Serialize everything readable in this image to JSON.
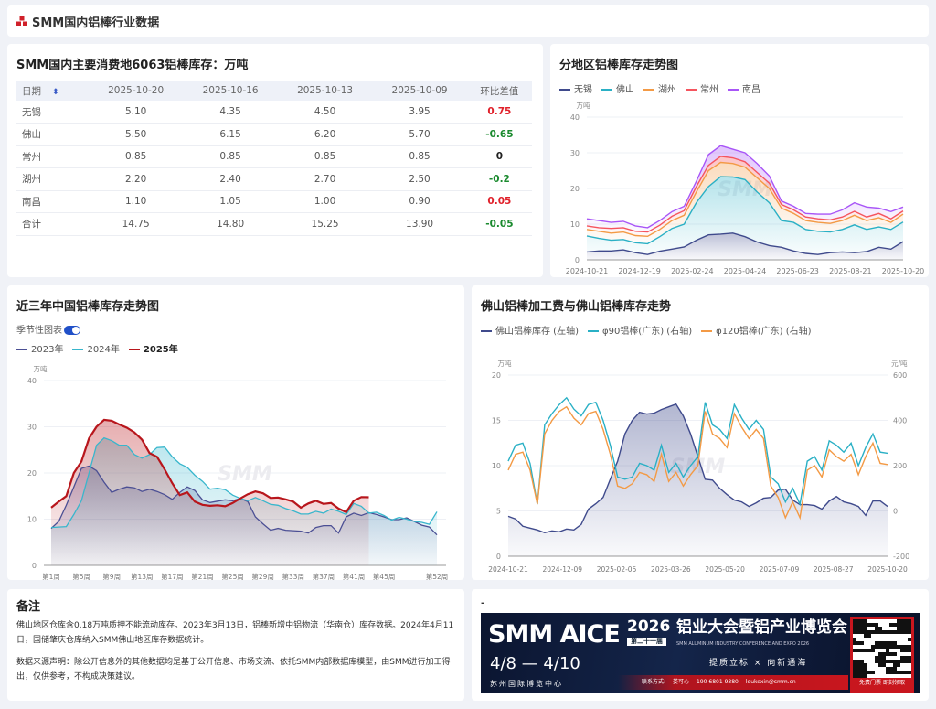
{
  "header": {
    "title": "SMM国内铝棒行业数据",
    "icon": "smm-logo-icon"
  },
  "table": {
    "title": "SMM国内主要消费地6063铝棒库存：万吨",
    "headers": [
      "日期",
      "2025-10-20",
      "2025-10-16",
      "2025-10-13",
      "2025-10-09",
      "环比差值"
    ],
    "rows": [
      {
        "cells": [
          "无锡",
          "5.10",
          "4.35",
          "4.50",
          "3.95",
          "0.75"
        ],
        "trend": "up"
      },
      {
        "cells": [
          "佛山",
          "5.50",
          "6.15",
          "6.20",
          "5.70",
          "-0.65"
        ],
        "trend": "down"
      },
      {
        "cells": [
          "常州",
          "0.85",
          "0.85",
          "0.85",
          "0.85",
          "0"
        ],
        "trend": "flat"
      },
      {
        "cells": [
          "湖州",
          "2.20",
          "2.40",
          "2.70",
          "2.50",
          "-0.2"
        ],
        "trend": "down"
      },
      {
        "cells": [
          "南昌",
          "1.10",
          "1.05",
          "1.00",
          "0.90",
          "0.05"
        ],
        "trend": "up"
      },
      {
        "cells": [
          "合计",
          "14.75",
          "14.80",
          "15.25",
          "13.90",
          "-0.05"
        ],
        "trend": "down"
      }
    ]
  },
  "colors": {
    "up": "#e0202a",
    "down": "#1a8a2e",
    "flat": "#222222"
  },
  "watermark": "SMM",
  "chart_data": [
    {
      "type": "area",
      "stacked": true,
      "title": "分地区铝棒库存走势图",
      "ylabel": "万吨",
      "ylim": [
        0,
        40
      ],
      "yticks": [
        "0",
        "10",
        "20",
        "30",
        "40"
      ],
      "x_ticks": [
        "2024-10-21",
        "2024-12-19",
        "2025-02-24",
        "2025-04-24",
        "2025-06-23",
        "2025-08-21",
        "2025-10-20"
      ],
      "series": [
        {
          "name": "无锡",
          "color": "#3f4a8c",
          "values": [
            2.2,
            2.5,
            2.5,
            2.8,
            2.0,
            1.5,
            2.4,
            3.0,
            3.6,
            5.5,
            7.0,
            7.2,
            7.5,
            6.5,
            5.0,
            4.0,
            3.5,
            2.5,
            1.8,
            1.5,
            2.0,
            2.2,
            2.0,
            2.3,
            3.5,
            3.0,
            5.1
          ]
        },
        {
          "name": "佛山",
          "color": "#2ab0c5",
          "values": [
            4.5,
            3.5,
            3.0,
            2.9,
            2.8,
            3.0,
            4.1,
            5.8,
            6.4,
            10.5,
            13.5,
            16.1,
            15.7,
            16.0,
            14.0,
            12.0,
            7.5,
            8.0,
            6.7,
            6.5,
            5.8,
            6.3,
            7.8,
            6.2,
            5.7,
            5.5,
            5.5
          ]
        },
        {
          "name": "湖州",
          "color": "#f39a45",
          "values": [
            1.8,
            2,
            2,
            2.1,
            2,
            2.1,
            2,
            2.2,
            2.5,
            3,
            4.5,
            4,
            3.8,
            3.5,
            4,
            4,
            3.5,
            2.5,
            2.5,
            2.5,
            2.4,
            2.5,
            2.7,
            2.5,
            2.6,
            2,
            2.2
          ]
        },
        {
          "name": "常州",
          "color": "#f5545e",
          "values": [
            1,
            1,
            1.3,
            1.2,
            1.2,
            1.2,
            1.2,
            1.2,
            1.3,
            1.5,
            1.5,
            1.7,
            1.6,
            1.5,
            1.5,
            1.5,
            1,
            1,
            1,
            1,
            1,
            1,
            1.1,
            1,
            1.2,
            1,
            0.9
          ]
        },
        {
          "name": "南昌",
          "color": "#a855f7",
          "values": [
            2,
            2,
            1.7,
            1.8,
            1.5,
            1.2,
            1.3,
            1.3,
            1.2,
            1.5,
            3,
            3,
            2.4,
            2.5,
            2.5,
            2,
            1,
            1,
            1,
            1.3,
            1.6,
            2,
            2.4,
            2.8,
            1.5,
            2,
            1.1
          ]
        }
      ]
    },
    {
      "type": "area",
      "title": "近三年中国铝棒库存走势图",
      "toggle_label": "季节性图表",
      "toggle_on": true,
      "ylabel": "万吨",
      "ylim": [
        0,
        40
      ],
      "yticks": [
        "0",
        "10",
        "20",
        "30",
        "40"
      ],
      "x_ticks": [
        "第1周",
        "第5周",
        "第9周",
        "第13周",
        "第17周",
        "第21周",
        "第25周",
        "第29周",
        "第33周",
        "第37周",
        "第41周",
        "第45周",
        "第52周"
      ],
      "x_tick_weeks": [
        1,
        5,
        9,
        13,
        17,
        21,
        25,
        29,
        33,
        37,
        41,
        45,
        52
      ],
      "series": [
        {
          "name": "2023年",
          "color": "#4b4f94",
          "values": [
            8,
            9.5,
            13,
            17,
            21,
            21.5,
            20.5,
            18,
            15.8,
            16.5,
            17,
            16.8,
            16,
            16.5,
            16,
            15.3,
            14.3,
            15.8,
            17,
            16.2,
            14.2,
            13.6,
            13.9,
            14.2,
            14,
            14.5,
            13.8,
            10.5,
            9,
            7.6,
            8,
            7.6,
            7.5,
            7.4,
            7,
            8.2,
            8.6,
            8.6,
            7,
            10.5,
            11.3,
            10.8,
            11.4,
            11,
            10.5,
            9.9,
            9.9,
            10.3,
            9.5,
            8.7,
            8.3,
            6.6
          ]
        },
        {
          "name": "2024年",
          "color": "#38b6cc",
          "values": [
            8.2,
            8.3,
            8.4,
            11,
            14,
            20,
            26,
            27.6,
            27,
            26,
            26,
            24,
            23.2,
            24,
            25.5,
            25.6,
            23.5,
            22,
            21.2,
            19.5,
            18.2,
            16.5,
            16.7,
            16.4,
            15.2,
            14.5,
            14,
            14.7,
            14,
            13.2,
            13,
            12.3,
            11.8,
            11.1,
            11.1,
            11.7,
            11.3,
            12.2,
            11.7,
            11,
            13.4,
            12.8,
            11.3,
            11.5,
            10.8,
            9.8,
            10.4,
            10,
            9.5,
            9.3,
            8.9,
            11.6
          ]
        },
        {
          "name": "2025年",
          "color": "#b8161c",
          "values": [
            12.5,
            13.8,
            15,
            20,
            22.5,
            27.5,
            30,
            31.5,
            31.3,
            30.5,
            29.8,
            28.8,
            27.2,
            24.3,
            23.5,
            20.8,
            17.8,
            15.2,
            15.8,
            13.8,
            13.1,
            12.9,
            13,
            12.8,
            13.5,
            14.5,
            15.4,
            16,
            15.6,
            14.6,
            14.7,
            14.3,
            13.8,
            12.5,
            13.4,
            14,
            13.3,
            13.5,
            12.3,
            11.5,
            14,
            14.8,
            14.75
          ]
        }
      ]
    },
    {
      "type": "line",
      "title": "佛山铝棒加工费与佛山铝棒库存走势",
      "ylabel": "万吨",
      "ylabel_right": "元/吨",
      "ylim": [
        0,
        20
      ],
      "ylim_right": [
        -200,
        600
      ],
      "yticks": [
        "0",
        "5",
        "10",
        "15",
        "20"
      ],
      "yticks_right": [
        "-200",
        "0",
        "200",
        "400",
        "600"
      ],
      "x_ticks": [
        "2024-10-21",
        "2024-12-09",
        "2025-02-05",
        "2025-03-26",
        "2025-05-20",
        "2025-07-09",
        "2025-08-27",
        "2025-10-20"
      ],
      "series": [
        {
          "name": "佛山铝棒库存 (左轴)",
          "axis": "left",
          "color": "#3f4a8c",
          "values": [
            4.4,
            4.1,
            3.3,
            3.1,
            2.9,
            2.6,
            2.8,
            2.7,
            3.0,
            2.9,
            3.5,
            5.2,
            5.8,
            6.5,
            8.5,
            10.5,
            13.5,
            15,
            15.9,
            15.7,
            15.8,
            16.2,
            16.5,
            16.8,
            15.5,
            13.5,
            11,
            8.5,
            8.4,
            7.5,
            6.8,
            6.2,
            6.0,
            5.5,
            5.9,
            6.4,
            6.5,
            7.3,
            7.4,
            6.2,
            5.7,
            5.7,
            5.6,
            5.2,
            6.1,
            6.6,
            6.0,
            5.8,
            5.5,
            4.5,
            6.1,
            6.1,
            5.5
          ]
        },
        {
          "name": "φ90铝棒(广东) (右轴)",
          "axis": "right",
          "color": "#2ab0c5",
          "values": [
            220,
            290,
            300,
            210,
            30,
            380,
            430,
            470,
            500,
            450,
            420,
            470,
            480,
            400,
            290,
            150,
            140,
            150,
            210,
            200,
            180,
            290,
            170,
            210,
            150,
            200,
            240,
            480,
            380,
            360,
            320,
            470,
            410,
            360,
            400,
            360,
            150,
            120,
            40,
            100,
            30,
            220,
            240,
            180,
            310,
            290,
            260,
            300,
            200,
            280,
            340,
            260,
            255
          ]
        },
        {
          "name": "φ120铝棒(广东) (右轴)",
          "axis": "right",
          "color": "#f39a45",
          "values": [
            180,
            250,
            260,
            180,
            30,
            340,
            400,
            440,
            460,
            410,
            380,
            430,
            440,
            360,
            250,
            110,
            100,
            120,
            170,
            160,
            130,
            250,
            130,
            170,
            110,
            160,
            200,
            440,
            340,
            320,
            280,
            430,
            370,
            320,
            360,
            320,
            110,
            60,
            -30,
            40,
            -30,
            180,
            200,
            150,
            270,
            240,
            220,
            250,
            160,
            240,
            300,
            210,
            205
          ]
        }
      ]
    }
  ],
  "notes": {
    "title": "备注",
    "p1": "佛山地区仓库含0.18万吨质押不能流动库存。2023年3月13日，铝棒新增中铝物流（华南仓）库存数据。2024年4月11日，国储肇庆仓库纳入SMM佛山地区库存数据统计。",
    "p2": "数据来源声明：除公开信息外的其他数据均是基于公开信息、市场交流、依托SMM内部数据库模型，由SMM进行加工得出，仅供参考，不构成决策建议。"
  },
  "ad": {
    "title": "-",
    "brand": "SMM AICE",
    "year": "2026",
    "edition": "第二十一届",
    "name": "铝业大会暨铝产业博览会",
    "english": "SMM ALUMINUM INDUSTRY CONFERENCE AND EXPO 2026",
    "date_start": "4/8",
    "date_end": "4/10",
    "venue": "苏州国际博览中心",
    "slogan": "提质立标 × 向新通海",
    "contact_label": "联系方式:",
    "contact_name": "娄可心",
    "phone": "190 6801 9380",
    "email": "loukexin@smm.cn",
    "cta": "免费门票 即刻领取"
  }
}
